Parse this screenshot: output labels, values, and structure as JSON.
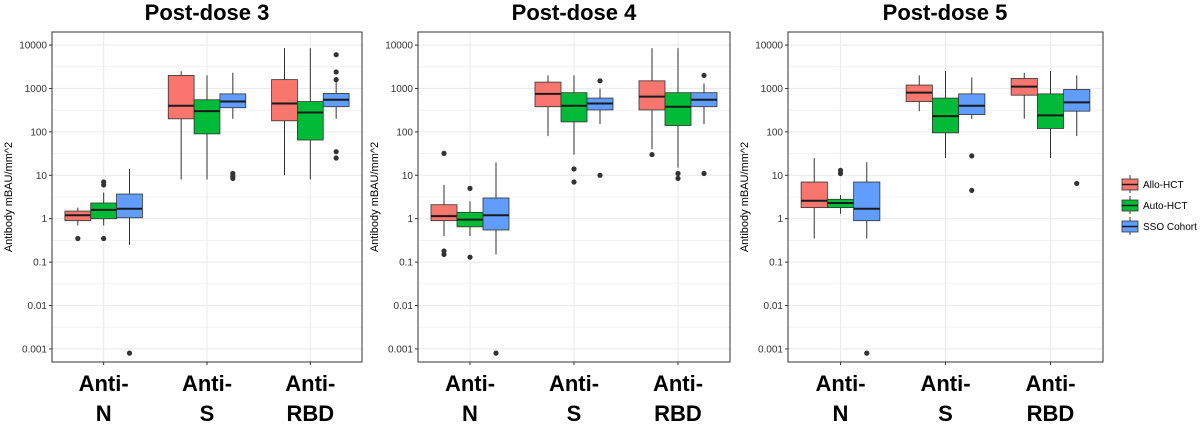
{
  "chart_data": [
    {
      "type": "box",
      "title": "Post-dose 3",
      "ylabel": "Antibody mBAU/mm^2",
      "yscale": "log10",
      "ylim": [
        0.0005,
        20000
      ],
      "y_ticks": [
        "0.001",
        "0.01",
        "0.1",
        "1",
        "10",
        "100",
        "1000",
        "10000"
      ],
      "categories": [
        [
          "Anti-",
          "N"
        ],
        [
          "Anti-",
          "S"
        ],
        [
          "Anti-",
          "RBD"
        ]
      ],
      "series": [
        {
          "name": "Allo-HCT",
          "boxes": [
            {
              "whisker_low": 0.7,
              "q1": 0.9,
              "median": 1.2,
              "q3": 1.5,
              "whisker_high": 1.8,
              "outliers": [
                0.35
              ]
            },
            {
              "whisker_low": 8,
              "q1": 200,
              "median": 400,
              "q3": 2000,
              "whisker_high": 2500,
              "outliers": []
            },
            {
              "whisker_low": 10,
              "q1": 180,
              "median": 450,
              "q3": 1600,
              "whisker_high": 8500,
              "outliers": []
            }
          ]
        },
        {
          "name": "Auto-HCT",
          "boxes": [
            {
              "whisker_low": 0.7,
              "q1": 1.0,
              "median": 1.6,
              "q3": 2.3,
              "whisker_high": 4,
              "outliers": [
                6,
                7,
                0.35
              ]
            },
            {
              "whisker_low": 8,
              "q1": 90,
              "median": 300,
              "q3": 550,
              "whisker_high": 2000,
              "outliers": []
            },
            {
              "whisker_low": 8,
              "q1": 65,
              "median": 280,
              "q3": 500,
              "whisker_high": 8500,
              "outliers": []
            }
          ]
        },
        {
          "name": "SSO Cohort",
          "boxes": [
            {
              "whisker_low": 0.25,
              "q1": 1.05,
              "median": 1.7,
              "q3": 3.7,
              "whisker_high": 14,
              "outliers": [
                0.0008
              ]
            },
            {
              "whisker_low": 200,
              "q1": 360,
              "median": 500,
              "q3": 750,
              "whisker_high": 2300,
              "outliers": [
                8.5,
                9.5,
                11
              ]
            },
            {
              "whisker_low": 200,
              "q1": 380,
              "median": 550,
              "q3": 770,
              "whisker_high": 1500,
              "outliers": [
                6000,
                2400,
                1600,
                35,
                25
              ]
            }
          ]
        }
      ]
    },
    {
      "type": "box",
      "title": "Post-dose 4",
      "ylabel": "Antibody mBAU/mm^2",
      "yscale": "log10",
      "ylim": [
        0.0005,
        20000
      ],
      "y_ticks": [
        "0.001",
        "0.01",
        "0.1",
        "1",
        "10",
        "100",
        "1000",
        "10000"
      ],
      "categories": [
        [
          "Anti-",
          "N"
        ],
        [
          "Anti-",
          "S"
        ],
        [
          "Anti-",
          "RBD"
        ]
      ],
      "series": [
        {
          "name": "Allo-HCT",
          "boxes": [
            {
              "whisker_low": 0.4,
              "q1": 0.9,
              "median": 1.15,
              "q3": 2.1,
              "whisker_high": 6,
              "outliers": [
                0.18,
                0.15,
                32
              ]
            },
            {
              "whisker_low": 80,
              "q1": 380,
              "median": 750,
              "q3": 1400,
              "whisker_high": 2000,
              "outliers": []
            },
            {
              "whisker_low": 40,
              "q1": 320,
              "median": 650,
              "q3": 1500,
              "whisker_high": 8500,
              "outliers": [
                30
              ]
            }
          ]
        },
        {
          "name": "Auto-HCT",
          "boxes": [
            {
              "whisker_low": 0.4,
              "q1": 0.65,
              "median": 0.95,
              "q3": 1.4,
              "whisker_high": 2.5,
              "outliers": [
                5,
                0.13
              ]
            },
            {
              "whisker_low": 30,
              "q1": 170,
              "median": 400,
              "q3": 800,
              "whisker_high": 2000,
              "outliers": [
                14,
                7
              ]
            },
            {
              "whisker_low": 15,
              "q1": 140,
              "median": 380,
              "q3": 800,
              "whisker_high": 8500,
              "outliers": [
                11,
                8.5
              ]
            }
          ]
        },
        {
          "name": "SSO Cohort",
          "boxes": [
            {
              "whisker_low": 0.15,
              "q1": 0.55,
              "median": 1.2,
              "q3": 3,
              "whisker_high": 20,
              "outliers": [
                0.0008
              ]
            },
            {
              "whisker_low": 150,
              "q1": 320,
              "median": 450,
              "q3": 600,
              "whisker_high": 1000,
              "outliers": [
                1500,
                10
              ]
            },
            {
              "whisker_low": 150,
              "q1": 380,
              "median": 550,
              "q3": 800,
              "whisker_high": 1300,
              "outliers": [
                2000,
                11
              ]
            }
          ]
        }
      ]
    },
    {
      "type": "box",
      "title": "Post-dose 5",
      "ylabel": "Antibody mBAU/mm^2",
      "yscale": "log10",
      "ylim": [
        0.0005,
        20000
      ],
      "y_ticks": [
        "0.001",
        "0.01",
        "0.1",
        "1",
        "10",
        "100",
        "1000",
        "10000"
      ],
      "categories": [
        [
          "Anti-",
          "N"
        ],
        [
          "Anti-",
          "S"
        ],
        [
          "Anti-",
          "RBD"
        ]
      ],
      "series": [
        {
          "name": "Allo-HCT",
          "boxes": [
            {
              "whisker_low": 0.35,
              "q1": 1.8,
              "median": 2.6,
              "q3": 7,
              "whisker_high": 25,
              "outliers": []
            },
            {
              "whisker_low": 300,
              "q1": 500,
              "median": 800,
              "q3": 1200,
              "whisker_high": 2000,
              "outliers": []
            },
            {
              "whisker_low": 200,
              "q1": 700,
              "median": 1100,
              "q3": 1700,
              "whisker_high": 2300,
              "outliers": []
            }
          ]
        },
        {
          "name": "Auto-HCT",
          "boxes": [
            {
              "whisker_low": 1.3,
              "q1": 1.8,
              "median": 2.3,
              "q3": 2.8,
              "whisker_high": 3.5,
              "outliers": [
                13,
                11
              ]
            },
            {
              "whisker_low": 25,
              "q1": 95,
              "median": 230,
              "q3": 600,
              "whisker_high": 2500,
              "outliers": []
            },
            {
              "whisker_low": 25,
              "q1": 120,
              "median": 240,
              "q3": 750,
              "whisker_high": 2500,
              "outliers": []
            }
          ]
        },
        {
          "name": "SSO Cohort",
          "boxes": [
            {
              "whisker_low": 0.35,
              "q1": 0.9,
              "median": 1.7,
              "q3": 7,
              "whisker_high": 20,
              "outliers": [
                0.0008
              ]
            },
            {
              "whisker_low": 200,
              "q1": 250,
              "median": 400,
              "q3": 750,
              "whisker_high": 1800,
              "outliers": [
                28,
                4.5
              ]
            },
            {
              "whisker_low": 80,
              "q1": 300,
              "median": 480,
              "q3": 950,
              "whisker_high": 2000,
              "outliers": [
                6.5
              ]
            }
          ]
        }
      ]
    }
  ],
  "legend": {
    "position": "right",
    "items": [
      {
        "label": "Allo-HCT",
        "color": "#F8766D"
      },
      {
        "label": "Auto-HCT",
        "color": "#00BA38"
      },
      {
        "label": "SSO Cohort",
        "color": "#619CFF"
      }
    ]
  },
  "colors": {
    "grid": "#EBEBEB",
    "panel_border": "#333333",
    "outlier": "#333333",
    "median": "#1a1a1a"
  }
}
